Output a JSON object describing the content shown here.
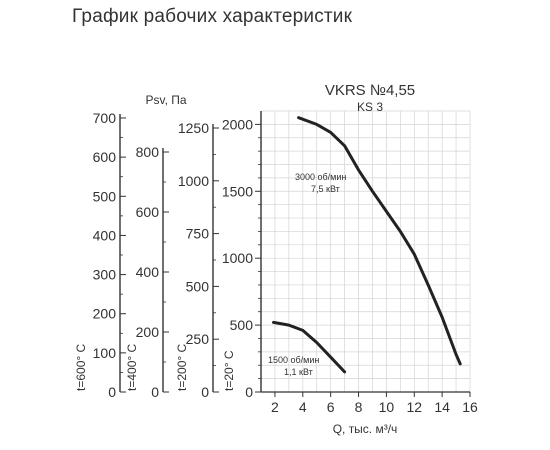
{
  "page_title": "График рабочих характеристик",
  "chart_data": {
    "type": "line",
    "title": "VKRS №4,55",
    "subtitle": "KS 3",
    "xlabel": "Q, тыс. м³/ч",
    "ylabel": "Psv, Па",
    "xlim": [
      1,
      16
    ],
    "ylim": [
      0,
      2100
    ],
    "x_ticks": [
      2,
      4,
      6,
      8,
      10,
      12,
      14,
      16
    ],
    "y_ticks": [
      0,
      500,
      1000,
      1500,
      2000
    ],
    "grid": true,
    "series": [
      {
        "name": "3000 об/мин\n7,5 кВт",
        "label_lines": [
          "3000 об/мин",
          "7,5 кВт"
        ],
        "x": [
          3.7,
          5.0,
          6.0,
          7.0,
          8.0,
          9.0,
          10.0,
          11.0,
          12.0,
          13.0,
          14.0,
          15.0,
          15.3
        ],
        "y": [
          2050,
          2000,
          1940,
          1840,
          1660,
          1500,
          1350,
          1200,
          1030,
          800,
          560,
          280,
          210
        ]
      },
      {
        "name": "1500 об/мин\n1,1 кВт",
        "label_lines": [
          "1500 об/мин",
          "1,1 кВт"
        ],
        "x": [
          1.9,
          3.0,
          4.0,
          5.0,
          6.0,
          7.0
        ],
        "y": [
          520,
          500,
          460,
          370,
          260,
          150
        ]
      }
    ],
    "temperature_scales": [
      {
        "label": "t=600° C",
        "ticks": [
          0,
          100,
          200,
          300,
          400,
          500,
          600,
          700
        ]
      },
      {
        "label": "t=400° C",
        "ticks": [
          0,
          200,
          400,
          600,
          800
        ]
      },
      {
        "label": "t=200° C",
        "ticks": [
          0,
          250,
          500,
          750,
          1000,
          1250
        ]
      },
      {
        "label": "t=20° C",
        "ticks": [
          0,
          500,
          1000,
          1500,
          2000
        ]
      }
    ]
  }
}
